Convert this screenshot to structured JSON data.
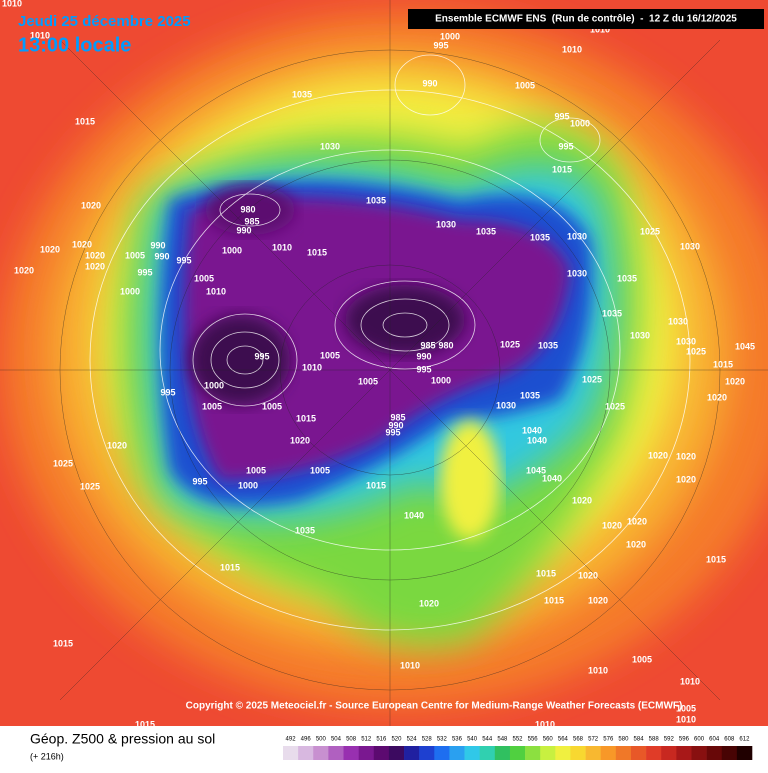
{
  "header": {
    "date": "Jeudi 25 décembre 2025",
    "time": "13:00 locale",
    "model": "Ensemble ECMWF ENS  (Run de contrôle)  -  12 Z du 16/12/2025"
  },
  "copyright": "Copyright © 2025 Meteociel.fr - Source European Centre for Medium-Range Weather Forecasts (ECMWF)",
  "legend": {
    "title": "Géop. Z500 & pression au sol",
    "subtitle": "(+ 216h)"
  },
  "colorbar": {
    "levels": [
      492,
      496,
      500,
      504,
      508,
      512,
      516,
      520,
      524,
      528,
      532,
      536,
      540,
      544,
      548,
      552,
      556,
      560,
      564,
      568,
      572,
      576,
      580,
      584,
      588,
      592,
      596,
      600,
      604,
      608,
      612
    ],
    "colors": [
      "#e8dcec",
      "#d8b8e0",
      "#c890d0",
      "#b060c0",
      "#9830b0",
      "#7a1890",
      "#5c0a70",
      "#3c0a60",
      "#2020a0",
      "#1e40d0",
      "#1e6ef0",
      "#2aa0f0",
      "#30c8e8",
      "#30d0b0",
      "#30c060",
      "#50d040",
      "#8ce040",
      "#c8f040",
      "#f0f040",
      "#f8d830",
      "#f8b830",
      "#f89828",
      "#f07828",
      "#e85828",
      "#e03c28",
      "#c82820",
      "#a81818",
      "#881010",
      "#680808",
      "#480404",
      "#200000"
    ]
  },
  "isobar_labels": [
    1010,
    1010,
    1000,
    995,
    1010,
    1010,
    990,
    1005,
    1035,
    1015,
    1030,
    995,
    1000,
    995,
    1015,
    1035,
    1020,
    980,
    985,
    990,
    1030,
    1035,
    1025,
    1020,
    1020,
    990,
    1000,
    1010,
    1015,
    1035,
    1030,
    1030,
    1020,
    1005,
    990,
    995,
    1020,
    1020,
    995,
    1005,
    1030,
    1035,
    1000,
    1010,
    1035,
    1030,
    1030,
    995,
    1005,
    985,
    980,
    1025,
    1035,
    990,
    1030,
    1025,
    1045,
    995,
    1010,
    1000,
    1005,
    1000,
    995,
    1025,
    1035,
    1015,
    1020,
    1005,
    1005,
    1030,
    1025,
    1020,
    1015,
    985,
    990,
    995,
    1020,
    1040,
    1040,
    1020,
    1020,
    1020,
    1005,
    1005,
    1045,
    1025,
    995,
    1000,
    1015,
    1040,
    1025,
    1020,
    1020,
    1040,
    1035,
    1020,
    1020,
    1020,
    1015,
    1015,
    1020,
    1015,
    1020,
    1015,
    1020,
    1015,
    1005,
    1010,
    1010,
    1010,
    1005,
    1010,
    1015,
    1010
  ]
}
